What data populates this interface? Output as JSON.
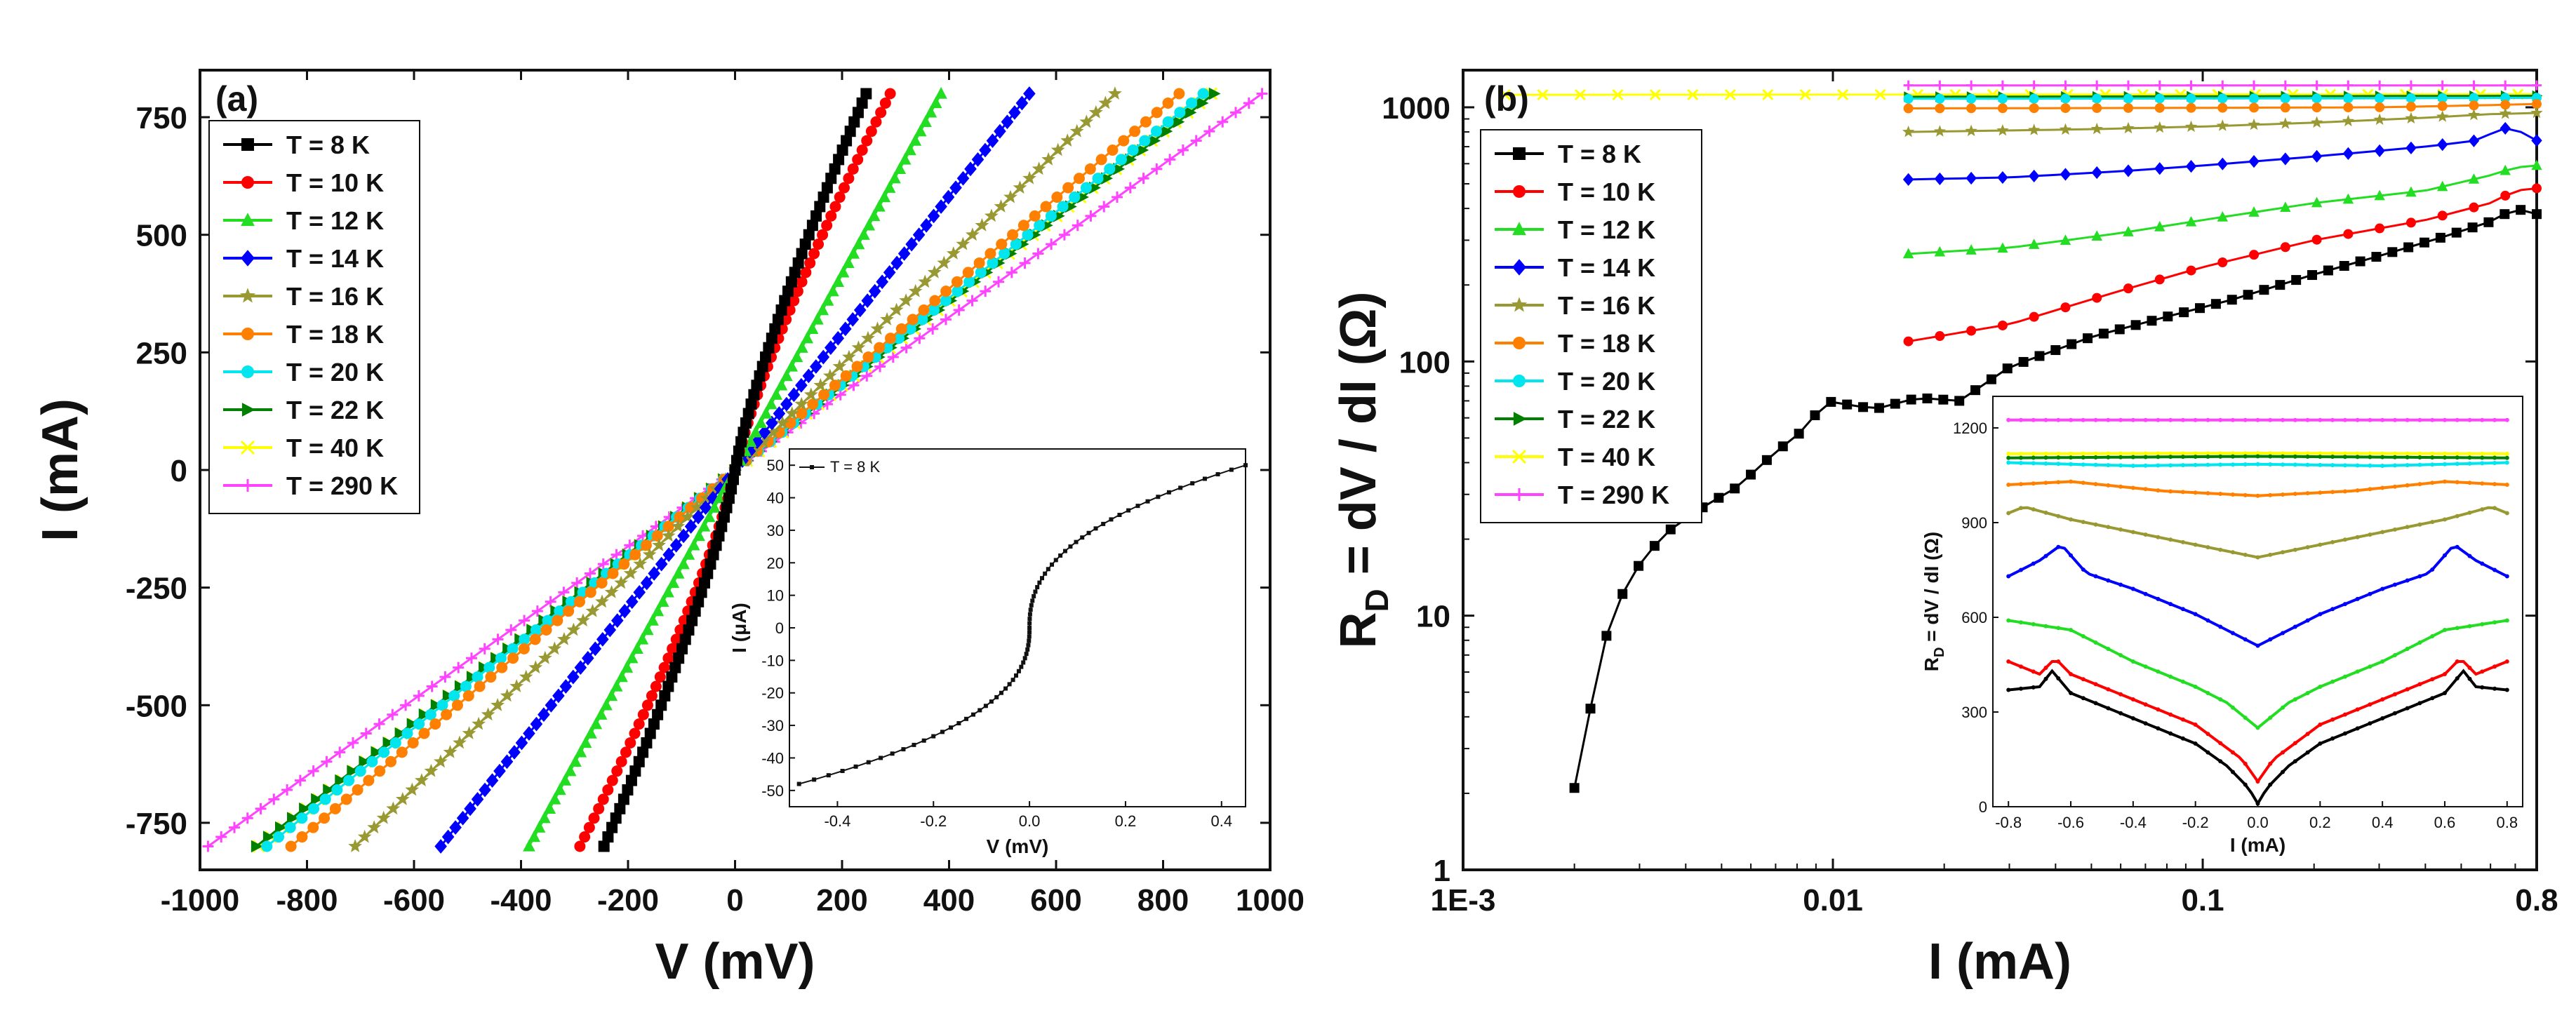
{
  "chart_data": [
    {
      "type": "line",
      "panel_label": "(a)",
      "xlabel": "V (mV)",
      "ylabel": "I (mA)",
      "xlim": [
        -1000,
        1000
      ],
      "ylim": [
        -850,
        850
      ],
      "xticks": [
        -1000,
        -800,
        -600,
        -400,
        -200,
        0,
        200,
        400,
        600,
        800,
        1000
      ],
      "yticks": [
        -750,
        -500,
        -250,
        0,
        250,
        500,
        750
      ],
      "legend_position": "top-left",
      "current_range_mA": [
        -800,
        800
      ],
      "series": [
        {
          "name": "T = 8 K",
          "color": "#000000",
          "marker": "square",
          "v_at_800mA": 245,
          "shape": "nonlinear"
        },
        {
          "name": "T = 10 K",
          "color": "#ff0000",
          "marker": "circle",
          "v_at_800mA": 290,
          "shape": "nonlinear"
        },
        {
          "name": "T = 12 K",
          "color": "#22dd22",
          "marker": "triangle",
          "v_at_800mA": 385,
          "shape": "linear"
        },
        {
          "name": "T = 14 K",
          "color": "#0000ff",
          "marker": "diamond",
          "v_at_800mA": 550,
          "shape": "linear"
        },
        {
          "name": "T = 16 K",
          "color": "#999933",
          "marker": "star",
          "v_at_800mA": 710,
          "shape": "linear"
        },
        {
          "name": "T = 18 K",
          "color": "#ff8000",
          "marker": "circle",
          "v_at_800mA": 830,
          "shape": "linear"
        },
        {
          "name": "T = 20 K",
          "color": "#00e5ee",
          "marker": "circle",
          "v_at_800mA": 875,
          "shape": "linear"
        },
        {
          "name": "T = 22 K",
          "color": "#008000",
          "marker": "triangle-right",
          "v_at_800mA": 895,
          "shape": "linear"
        },
        {
          "name": "T = 40 K",
          "color": "#ffff00",
          "marker": "x",
          "v_at_800mA": 890,
          "shape": "linear"
        },
        {
          "name": "T = 290 K",
          "color": "#ff44ff",
          "marker": "plus",
          "v_at_800mA": 985,
          "shape": "linear"
        }
      ],
      "inset": {
        "type": "scatter-line",
        "legend": "T = 8 K",
        "xlabel": "V (mV)",
        "ylabel": "I (μA)",
        "xlim": [
          -0.5,
          0.45
        ],
        "ylim": [
          -55,
          55
        ],
        "xticks": [
          -0.4,
          -0.2,
          0.0,
          0.2,
          0.4
        ],
        "yticks": [
          -50,
          -40,
          -30,
          -20,
          -10,
          0,
          10,
          20,
          30,
          40,
          50
        ],
        "xtick_labels": [
          "-0.4",
          "-0.2",
          "0.0",
          "0.2",
          "0.4"
        ],
        "current_range_uA": [
          -48,
          50
        ]
      }
    },
    {
      "type": "line",
      "panel_label": "(b)",
      "xlabel": "I (mA)",
      "ylabel": "R",
      "ylabel_sub": "D",
      "ylabel_rest": " = dV / dI (Ω)",
      "xscale": "log",
      "yscale": "log",
      "xlim": [
        0.001,
        0.8
      ],
      "ylim": [
        1,
        1400
      ],
      "xticks": [
        0.001,
        0.01,
        0.1,
        0.8
      ],
      "xtick_labels": [
        "1E-3",
        "0.01",
        "0.1",
        "0.8"
      ],
      "yticks": [
        1,
        10,
        100,
        1000
      ],
      "ytick_labels": [
        "1",
        "10",
        "100",
        "1000"
      ],
      "legend_position": "left",
      "series": [
        {
          "name": "T = 8 K",
          "color": "#000000",
          "marker": "square",
          "x_start": 0.002,
          "x_end": 0.8,
          "anchors": [
            [
              0.002,
              2.1
            ],
            [
              0.0024,
              7.8
            ],
            [
              0.0028,
              14
            ],
            [
              0.0035,
              21
            ],
            [
              0.0045,
              27
            ],
            [
              0.0055,
              32
            ],
            [
              0.007,
              44
            ],
            [
              0.0085,
              55
            ],
            [
              0.0095,
              70
            ],
            [
              0.013,
              65
            ],
            [
              0.017,
              72
            ],
            [
              0.022,
              70
            ],
            [
              0.03,
              95
            ],
            [
              0.05,
              125
            ],
            [
              0.08,
              150
            ],
            [
              0.12,
              175
            ],
            [
              0.2,
              220
            ],
            [
              0.3,
              260
            ],
            [
              0.45,
              310
            ],
            [
              0.6,
              355
            ],
            [
              0.7,
              400
            ],
            [
              0.8,
              380
            ]
          ]
        },
        {
          "name": "T = 10 K",
          "color": "#ff0000",
          "marker": "circle",
          "x_start": 0.016,
          "x_end": 0.8,
          "anchors": [
            [
              0.016,
              120
            ],
            [
              0.03,
              140
            ],
            [
              0.06,
              190
            ],
            [
              0.1,
              235
            ],
            [
              0.2,
              300
            ],
            [
              0.4,
              360
            ],
            [
              0.6,
              420
            ],
            [
              0.7,
              470
            ],
            [
              0.8,
              480
            ]
          ]
        },
        {
          "name": "T = 12 K",
          "color": "#22dd22",
          "marker": "triangle",
          "x_start": 0.016,
          "x_end": 0.8,
          "anchors": [
            [
              0.016,
              265
            ],
            [
              0.03,
              280
            ],
            [
              0.06,
              320
            ],
            [
              0.1,
              360
            ],
            [
              0.2,
              420
            ],
            [
              0.4,
              470
            ],
            [
              0.6,
              540
            ],
            [
              0.7,
              580
            ],
            [
              0.8,
              590
            ]
          ]
        },
        {
          "name": "T = 14 K",
          "color": "#0000ff",
          "marker": "diamond",
          "x_start": 0.016,
          "x_end": 0.8,
          "anchors": [
            [
              0.016,
              520
            ],
            [
              0.03,
              530
            ],
            [
              0.06,
              560
            ],
            [
              0.1,
              590
            ],
            [
              0.2,
              640
            ],
            [
              0.4,
              700
            ],
            [
              0.55,
              740
            ],
            [
              0.65,
              830
            ],
            [
              0.75,
              790
            ],
            [
              0.8,
              740
            ]
          ]
        },
        {
          "name": "T = 16 K",
          "color": "#999933",
          "marker": "star",
          "x_start": 0.016,
          "x_end": 0.8,
          "anchors": [
            [
              0.016,
              800
            ],
            [
              0.05,
              820
            ],
            [
              0.1,
              840
            ],
            [
              0.2,
              870
            ],
            [
              0.4,
              910
            ],
            [
              0.6,
              940
            ],
            [
              0.8,
              950
            ]
          ]
        },
        {
          "name": "T = 18 K",
          "color": "#ff8000",
          "marker": "circle",
          "x_start": 0.016,
          "x_end": 0.8,
          "anchors": [
            [
              0.016,
              990
            ],
            [
              0.1,
              995
            ],
            [
              0.3,
              1000
            ],
            [
              0.6,
              1020
            ],
            [
              0.8,
              1030
            ]
          ]
        },
        {
          "name": "T = 20 K",
          "color": "#00e5ee",
          "marker": "circle",
          "x_start": 0.016,
          "x_end": 0.8,
          "anchors": [
            [
              0.016,
              1080
            ],
            [
              0.3,
              1085
            ],
            [
              0.8,
              1090
            ]
          ]
        },
        {
          "name": "T = 22 K",
          "color": "#008000",
          "marker": "triangle-right",
          "x_start": 0.016,
          "x_end": 0.8,
          "anchors": [
            [
              0.016,
              1100
            ],
            [
              0.8,
              1110
            ]
          ]
        },
        {
          "name": "T = 40 K",
          "color": "#ffff00",
          "marker": "x",
          "x_start": 0.0013,
          "x_end": 0.8,
          "anchors": [
            [
              0.0013,
              1120
            ],
            [
              0.8,
              1125
            ]
          ]
        },
        {
          "name": "T = 290 K",
          "color": "#ff44ff",
          "marker": "plus",
          "x_start": 0.016,
          "x_end": 0.8,
          "anchors": [
            [
              0.016,
              1220
            ],
            [
              0.8,
              1220
            ]
          ]
        }
      ],
      "inset": {
        "type": "line",
        "xlabel": "I (mA)",
        "ylabel": "R",
        "ylabel_sub": "D",
        "ylabel_rest": " = dV / dI (Ω)",
        "xlim": [
          -0.85,
          0.85
        ],
        "ylim": [
          0,
          1300
        ],
        "xticks": [
          -0.8,
          -0.6,
          -0.4,
          -0.2,
          0.0,
          0.2,
          0.4,
          0.6,
          0.8
        ],
        "xtick_labels": [
          "-0.8",
          "-0.6",
          "-0.4",
          "-0.2",
          "0.0",
          "0.2",
          "0.4",
          "0.6",
          "0.8"
        ],
        "yticks": [
          0,
          300,
          600,
          900,
          1200
        ],
        "series": [
          {
            "name": "T = 8 K",
            "color": "#000000",
            "anchors": [
              [
                0,
                10
              ],
              [
                0.03,
                60
              ],
              [
                0.1,
                130
              ],
              [
                0.2,
                200
              ],
              [
                0.4,
                280
              ],
              [
                0.6,
                360
              ],
              [
                0.66,
                430
              ],
              [
                0.7,
                380
              ],
              [
                0.8,
                370
              ]
            ]
          },
          {
            "name": "T = 10 K",
            "color": "#ff0000",
            "anchors": [
              [
                0,
                80
              ],
              [
                0.05,
                150
              ],
              [
                0.2,
                260
              ],
              [
                0.4,
                340
              ],
              [
                0.6,
                420
              ],
              [
                0.65,
                470
              ],
              [
                0.7,
                420
              ],
              [
                0.8,
                460
              ]
            ]
          },
          {
            "name": "T = 12 K",
            "color": "#22dd22",
            "anchors": [
              [
                0,
                250
              ],
              [
                0.1,
                330
              ],
              [
                0.2,
                380
              ],
              [
                0.4,
                460
              ],
              [
                0.6,
                560
              ],
              [
                0.8,
                590
              ]
            ]
          },
          {
            "name": "T = 14 K",
            "color": "#0000ff",
            "anchors": [
              [
                0,
                510
              ],
              [
                0.1,
                560
              ],
              [
                0.2,
                610
              ],
              [
                0.4,
                690
              ],
              [
                0.55,
                740
              ],
              [
                0.63,
                830
              ],
              [
                0.7,
                780
              ],
              [
                0.8,
                730
              ]
            ]
          },
          {
            "name": "T = 16 K",
            "color": "#999933",
            "anchors": [
              [
                0,
                790
              ],
              [
                0.2,
                830
              ],
              [
                0.4,
                870
              ],
              [
                0.6,
                910
              ],
              [
                0.75,
                950
              ],
              [
                0.8,
                930
              ]
            ]
          },
          {
            "name": "T = 18 K",
            "color": "#ff8000",
            "anchors": [
              [
                0,
                985
              ],
              [
                0.3,
                1000
              ],
              [
                0.6,
                1030
              ],
              [
                0.8,
                1020
              ]
            ]
          },
          {
            "name": "T = 20 K",
            "color": "#00e5ee",
            "anchors": [
              [
                0,
                1085
              ],
              [
                0.4,
                1080
              ],
              [
                0.8,
                1090
              ]
            ]
          },
          {
            "name": "T = 22 K",
            "color": "#008000",
            "anchors": [
              [
                0,
                1110
              ],
              [
                0.8,
                1105
              ]
            ]
          },
          {
            "name": "T = 40 K",
            "color": "#ffff00",
            "anchors": [
              [
                0,
                1120
              ],
              [
                0.8,
                1118
              ]
            ]
          },
          {
            "name": "T = 290 K",
            "color": "#ff44ff",
            "anchors": [
              [
                0,
                1225
              ],
              [
                0.8,
                1225
              ]
            ]
          }
        ]
      }
    }
  ]
}
